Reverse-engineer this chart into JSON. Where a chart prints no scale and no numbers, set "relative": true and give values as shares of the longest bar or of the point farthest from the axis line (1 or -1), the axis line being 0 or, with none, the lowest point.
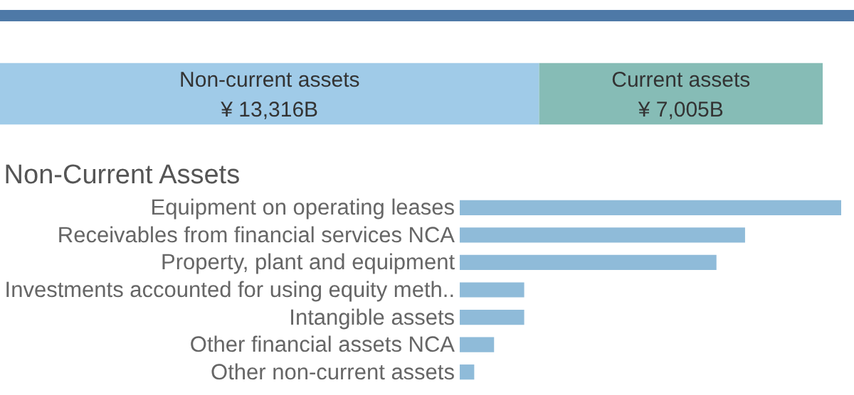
{
  "chart_data": [
    {
      "type": "bar",
      "orientation": "horizontal",
      "relative": true,
      "categories": [
        null
      ],
      "values": [
        1
      ],
      "color": "#4e79a7"
    },
    {
      "type": "bar",
      "orientation": "horizontal",
      "stacked": true,
      "categories": [
        null
      ],
      "legend": false,
      "series": [
        {
          "name": "Non-current assets",
          "color": "#a0cbe8",
          "values": [
            13316
          ],
          "value_labels": [
            "¥ 13,316B"
          ]
        },
        {
          "name": "Current assets",
          "color": "#86bcb6",
          "values": [
            7005
          ],
          "value_labels": [
            "¥ 7,005B"
          ]
        }
      ]
    },
    {
      "type": "bar",
      "orientation": "horizontal",
      "relative": true,
      "title": "Non-Current Assets",
      "color": "#8fbbd9",
      "categories": [
        "Equipment on operating leases",
        "Receivables from financial services NCA",
        "Property, plant and equipment",
        "Investments accounted for using equity meth..",
        "Intangible assets",
        "Other financial assets NCA",
        "Other non-current assets"
      ],
      "values": [
        1,
        0.748,
        0.673,
        0.169,
        0.169,
        0.09,
        0.038
      ]
    }
  ]
}
